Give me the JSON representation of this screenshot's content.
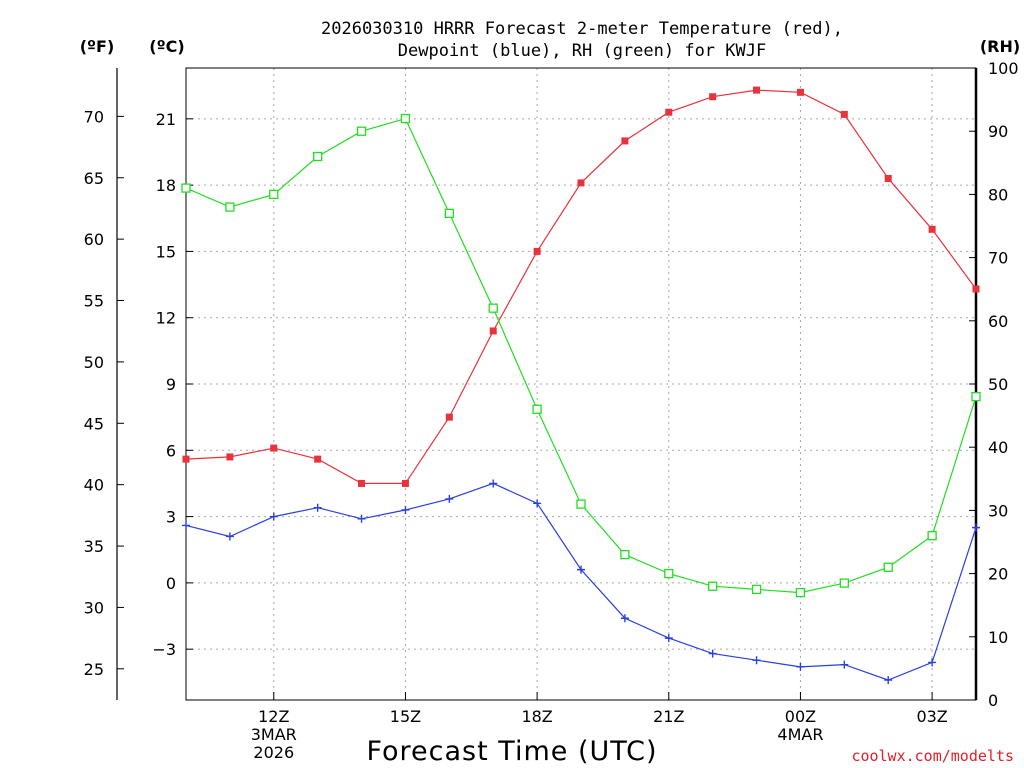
{
  "chart_data": {
    "type": "line",
    "title_line1": "2026030310 HRRR Forecast 2-meter Temperature (red),",
    "title_line2": "Dewpoint (blue), RH (green) for KWJF",
    "xlabel": "Forecast Time (UTC)",
    "credit": "coolwx.com/modelts",
    "units": {
      "fahrenheit": "(ºF)",
      "celsius": "(ºC)",
      "rh": "(RH)"
    },
    "x_hours": [
      0,
      1,
      2,
      3,
      4,
      5,
      6,
      7,
      8,
      9,
      10,
      11,
      12,
      13,
      14,
      15,
      16,
      17,
      18
    ],
    "x_ticks": [
      {
        "hour": 2,
        "lines": [
          "12Z",
          "3MAR",
          "2026"
        ]
      },
      {
        "hour": 5,
        "lines": [
          "15Z"
        ]
      },
      {
        "hour": 8,
        "lines": [
          "18Z"
        ]
      },
      {
        "hour": 11,
        "lines": [
          "21Z"
        ]
      },
      {
        "hour": 14,
        "lines": [
          "00Z",
          "4MAR"
        ]
      },
      {
        "hour": 17,
        "lines": [
          "03Z"
        ]
      }
    ],
    "celsius_axis": {
      "range": [
        -5.3,
        23.3
      ],
      "ticks": [
        -3,
        0,
        3,
        6,
        9,
        12,
        15,
        18,
        21
      ],
      "tick_labels": [
        "−3",
        "0",
        "3",
        "6",
        "9",
        "12",
        "15",
        "18",
        "21"
      ]
    },
    "fahrenheit_axis": {
      "ticks": [
        25,
        30,
        35,
        40,
        45,
        50,
        55,
        60,
        65,
        70
      ],
      "tick_labels": [
        "25",
        "30",
        "35",
        "40",
        "45",
        "50",
        "55",
        "60",
        "65",
        "70"
      ]
    },
    "rh_axis": {
      "range": [
        0,
        100
      ],
      "ticks": [
        0,
        10,
        20,
        30,
        40,
        50,
        60,
        70,
        80,
        90,
        100
      ],
      "tick_labels": [
        "0",
        "10",
        "20",
        "30",
        "40",
        "50",
        "60",
        "70",
        "80",
        "90",
        "100"
      ]
    },
    "grid": true,
    "series": [
      {
        "name": "Temperature",
        "axis": "celsius",
        "color": "#e8323c",
        "marker": "filled-square",
        "values": [
          5.6,
          5.7,
          6.1,
          5.6,
          4.5,
          4.5,
          7.5,
          11.4,
          15.0,
          18.1,
          20.0,
          21.3,
          22.0,
          22.3,
          22.2,
          21.2,
          18.3,
          16.0,
          13.3
        ]
      },
      {
        "name": "Dewpoint",
        "axis": "celsius",
        "color": "#2a3fe0",
        "marker": "plus",
        "values": [
          2.6,
          2.1,
          3.0,
          3.4,
          2.9,
          3.3,
          3.8,
          4.5,
          3.6,
          0.6,
          -1.6,
          -2.5,
          -3.2,
          -3.5,
          -3.8,
          -3.7,
          -4.4,
          -3.6,
          2.5
        ]
      },
      {
        "name": "RH",
        "axis": "rh",
        "color": "#22dd22",
        "marker": "open-square",
        "values": [
          81,
          78,
          80,
          86,
          90,
          92,
          77,
          62,
          46,
          31,
          23,
          20,
          18,
          17.5,
          17,
          18.5,
          21,
          26,
          48
        ]
      }
    ]
  }
}
